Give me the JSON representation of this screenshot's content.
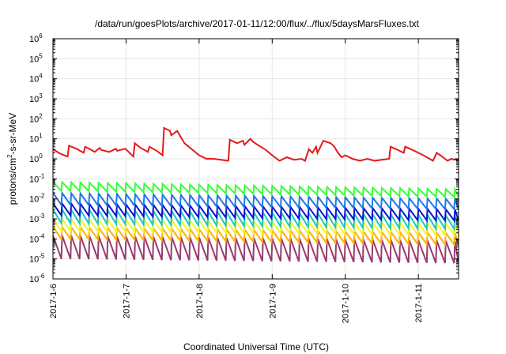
{
  "chart_data": {
    "type": "line",
    "title": "/data/run/goesPlots/archive/2017-01-11/12:00/flux/../flux/5daysMarsFluxes.txt",
    "xlabel": "Coordinated Universal Time (UTC)",
    "ylabel": {
      "base": "protons/cm",
      "sup": "2",
      "rest": "-s-sr-MeV"
    },
    "yscale": "log",
    "ylim": [
      1e-06,
      1000000.0
    ],
    "xlim": [
      0,
      5.55
    ],
    "x_axis_note": "x values are days since the first tick label 2017-1-6 00:00",
    "xticks": [
      {
        "value": 0,
        "label": "2017-1-6"
      },
      {
        "value": 1,
        "label": "2017-1-7"
      },
      {
        "value": 2,
        "label": "2017-1-8"
      },
      {
        "value": 3,
        "label": "2017-1-9"
      },
      {
        "value": 4,
        "label": "2017-1-10"
      },
      {
        "value": 5,
        "label": "2017-1-11"
      }
    ],
    "yticks": [
      {
        "exp": -6
      },
      {
        "exp": -5
      },
      {
        "exp": -4
      },
      {
        "exp": -3
      },
      {
        "exp": -2
      },
      {
        "exp": -1
      },
      {
        "exp": 0
      },
      {
        "exp": 1
      },
      {
        "exp": 2
      },
      {
        "exp": 3
      },
      {
        "exp": 4
      },
      {
        "exp": 5
      },
      {
        "exp": 6
      }
    ],
    "grid": true,
    "legend": "none",
    "colors": {
      "red": "#e41a1c",
      "green": "#33ff33",
      "blue_light": "#1f78e8",
      "blue_dark": "#0a14d0",
      "teal": "#1ec8b8",
      "yellow": "#f5f52a",
      "orange": "#ffb000",
      "maroon": "#9a3a6e"
    },
    "main_series": {
      "color": "#e41a1c",
      "x": [
        0.0,
        0.1,
        0.2,
        0.22,
        0.32,
        0.42,
        0.44,
        0.54,
        0.57,
        0.64,
        0.66,
        0.77,
        0.86,
        0.88,
        0.99,
        1.1,
        1.12,
        1.2,
        1.3,
        1.32,
        1.42,
        1.5,
        1.52,
        1.6,
        1.62,
        1.7,
        1.75,
        1.8,
        1.9,
        2.0,
        2.1,
        2.2,
        2.4,
        2.42,
        2.52,
        2.6,
        2.62,
        2.7,
        2.74,
        2.8,
        2.9,
        3.0,
        3.1,
        3.2,
        3.3,
        3.4,
        3.45,
        3.5,
        3.55,
        3.6,
        3.62,
        3.7,
        3.8,
        3.85,
        3.9,
        3.95,
        4.0,
        4.1,
        4.2,
        4.3,
        4.4,
        4.6,
        4.62,
        4.7,
        4.8,
        4.82,
        4.9,
        5.0,
        5.1,
        5.2,
        5.25,
        5.3,
        5.4,
        5.45,
        5.5,
        5.55
      ],
      "y": [
        3.0,
        1.8,
        1.3,
        4.5,
        3.2,
        2.0,
        4.0,
        2.6,
        2.2,
        3.5,
        2.8,
        2.2,
        3.2,
        2.5,
        3.2,
        1.3,
        6.0,
        3.5,
        2.2,
        4.0,
        2.5,
        1.5,
        35,
        25,
        15,
        25,
        12,
        6,
        3,
        1.5,
        1.0,
        1.0,
        0.8,
        9,
        6,
        8,
        5,
        10,
        7,
        5,
        3,
        1.5,
        0.8,
        1.2,
        0.9,
        1.0,
        0.8,
        3,
        2,
        4,
        2,
        8,
        6,
        4,
        2,
        1.2,
        1.5,
        1.0,
        0.8,
        1.0,
        0.8,
        1.0,
        4,
        3,
        2,
        4,
        3,
        2,
        1.3,
        0.8,
        2.0,
        1.5,
        0.8,
        1.0,
        0.9,
        1.0
      ]
    },
    "sawtooth_series": [
      {
        "color": "#33ff33",
        "high": 0.07,
        "low": 0.025,
        "end_high": 0.03,
        "end_low": 0.012
      },
      {
        "color": "#1f78e8",
        "high": 0.02,
        "low": 0.005,
        "end_high": 0.01,
        "end_low": 0.003
      },
      {
        "color": "#0a14d0",
        "high": 0.006,
        "low": 0.0015,
        "end_high": 0.003,
        "end_low": 0.0008
      },
      {
        "color": "#1ec8b8",
        "high": 0.003,
        "low": 0.0006,
        "end_high": 0.0015,
        "end_low": 0.0003
      },
      {
        "color": "#f5f52a",
        "high": 0.001,
        "low": 0.00025,
        "end_high": 0.0006,
        "end_low": 0.00015
      },
      {
        "color": "#ffb000",
        "high": 0.0004,
        "low": 0.0001,
        "end_high": 0.0002,
        "end_low": 5e-05
      },
      {
        "color": "#9a3a6e",
        "high": 0.00015,
        "low": 1e-05,
        "end_high": 8e-05,
        "end_low": 6e-06
      }
    ],
    "sawtooth_period_days": 0.125
  }
}
